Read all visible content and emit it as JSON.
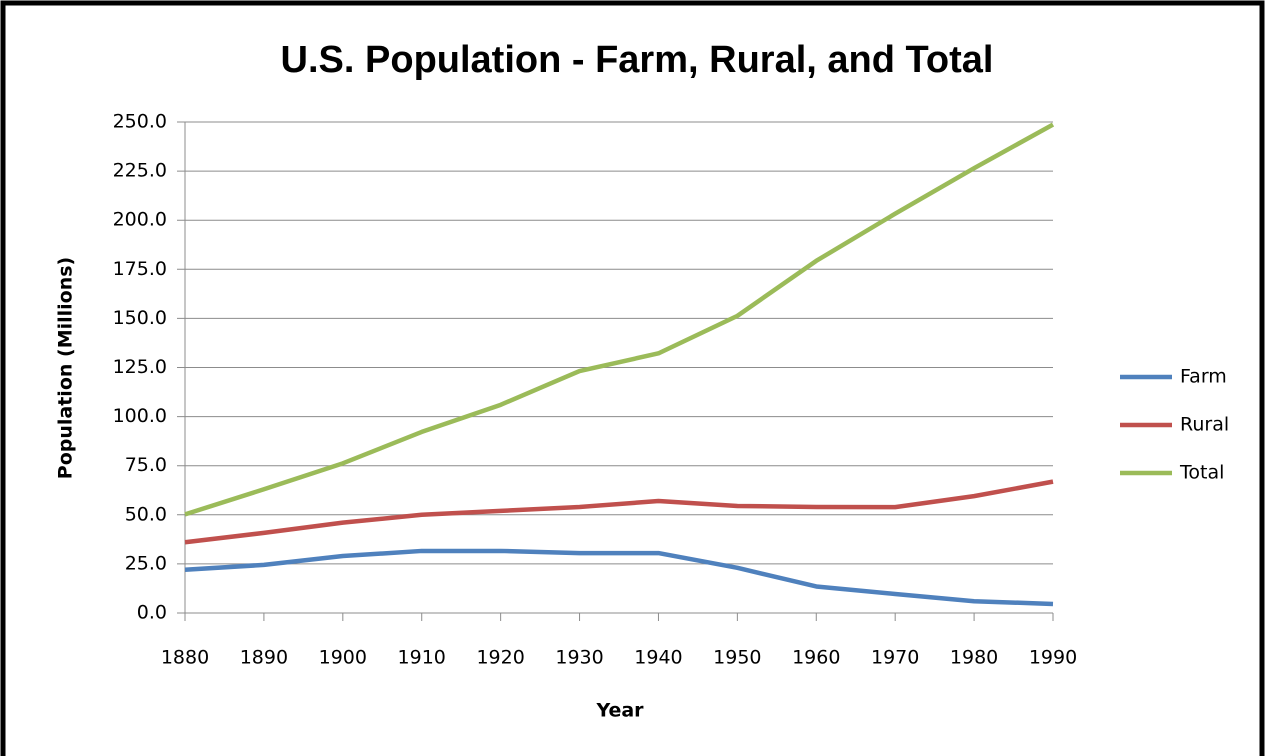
{
  "chart_data": {
    "type": "line",
    "title": "U.S. Population - Farm, Rural, and Total",
    "x_label": "Year",
    "y_label": "Population (Millions)",
    "categories": [
      "1880",
      "1890",
      "1900",
      "1910",
      "1920",
      "1930",
      "1940",
      "1950",
      "1960",
      "1970",
      "1980",
      "1990"
    ],
    "series": [
      {
        "name": "Farm",
        "color": "#4f81bd",
        "values": [
          22,
          24.5,
          29,
          31.6,
          31.6,
          30.5,
          30.5,
          23,
          13.5,
          9.7,
          6,
          4.6
        ]
      },
      {
        "name": "Rural",
        "color": "#c0504d",
        "values": [
          36,
          40.8,
          46,
          50,
          52,
          54,
          57,
          54.5,
          54,
          53.9,
          59.5,
          66.9
        ]
      },
      {
        "name": "Total",
        "color": "#9bbb59",
        "values": [
          50.2,
          63,
          76.2,
          92.2,
          106,
          123.2,
          132.2,
          151.3,
          179.3,
          203.3,
          226.5,
          248.7
        ]
      }
    ],
    "ylim": [
      0,
      250
    ],
    "yticks": [
      {
        "value": 0,
        "label": "0.0"
      },
      {
        "value": 25,
        "label": "25.0"
      },
      {
        "value": 50,
        "label": "50.0"
      },
      {
        "value": 75,
        "label": "75.0"
      },
      {
        "value": 100,
        "label": "100.0"
      },
      {
        "value": 125,
        "label": "125.0"
      },
      {
        "value": 150,
        "label": "150.0"
      },
      {
        "value": 175,
        "label": "175.0"
      },
      {
        "value": 200,
        "label": "200.0"
      },
      {
        "value": 225,
        "label": "225.0"
      },
      {
        "value": 250,
        "label": "250.0"
      }
    ],
    "grid": true,
    "legend": "right"
  }
}
